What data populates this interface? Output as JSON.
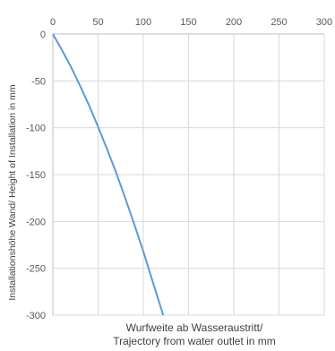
{
  "chart_data": {
    "type": "line",
    "title": "",
    "xlabel_lines": [
      "Wurfweite ab Wasseraustritt/",
      "Trajectory from water outlet in mm"
    ],
    "ylabel": "Installationshöhe Wand/ Height of Installation  in mm",
    "xlim": [
      0,
      300
    ],
    "ylim": [
      -300,
      0
    ],
    "x_ticks": [
      0,
      50,
      100,
      150,
      200,
      250,
      300
    ],
    "y_ticks": [
      0,
      -50,
      -100,
      -150,
      -200,
      -250,
      -300
    ],
    "grid": true,
    "x_axis_position": "top",
    "series": [
      {
        "color": "#5B9BD5",
        "points": [
          [
            0,
            0
          ],
          [
            10,
            -17
          ],
          [
            20,
            -35
          ],
          [
            30,
            -55
          ],
          [
            40,
            -76
          ],
          [
            50,
            -99
          ],
          [
            60,
            -123
          ],
          [
            70,
            -148
          ],
          [
            80,
            -175
          ],
          [
            90,
            -203
          ],
          [
            100,
            -232
          ],
          [
            110,
            -263
          ],
          [
            122,
            -300
          ]
        ]
      }
    ]
  },
  "colors": {
    "grid": "#d9d9d9",
    "axis": "#bfbfbf",
    "tick_text": "#595959"
  }
}
